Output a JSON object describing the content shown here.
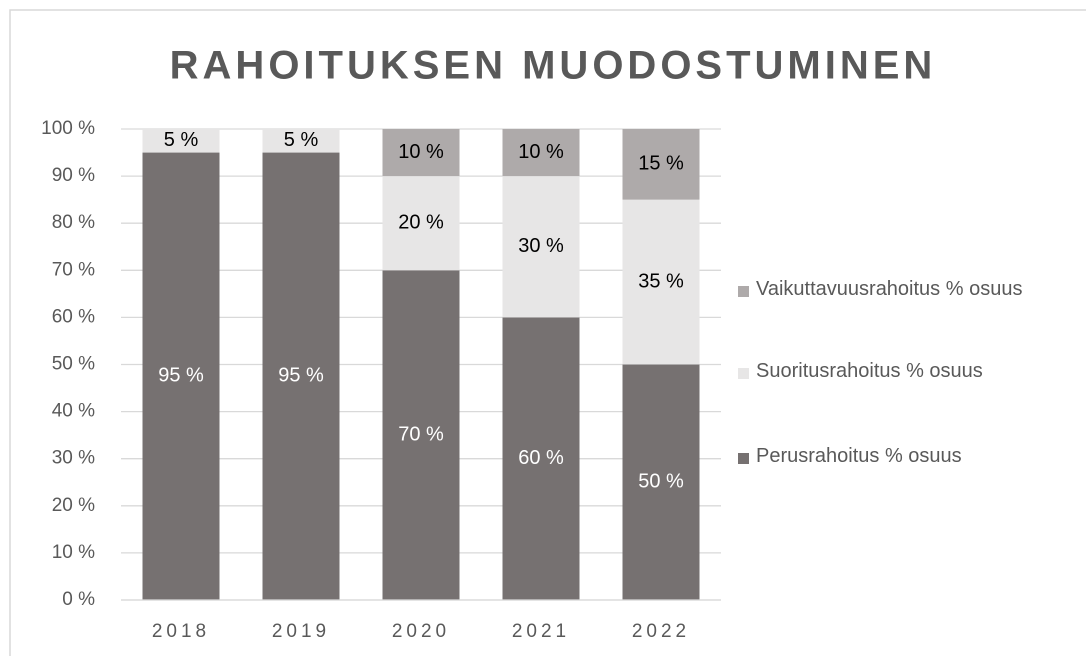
{
  "chart_data": {
    "type": "stacked_bar",
    "title": "RAHOITUKSEN MUODOSTUMINEN",
    "categories": [
      "2018",
      "2019",
      "2020",
      "2021",
      "2022"
    ],
    "series": [
      {
        "name": "Perusrahoitus % osuus",
        "color": "#767171",
        "values": [
          95,
          95,
          70,
          60,
          50
        ],
        "value_labels": [
          "95 %",
          "95 %",
          "70 %",
          "60 %",
          "50 %"
        ]
      },
      {
        "name": "Suoritusrahoitus % osuus",
        "color": "#e7e6e6",
        "values": [
          5,
          5,
          20,
          30,
          35
        ],
        "value_labels": [
          "5 %",
          "5 %",
          "20 %",
          "30 %",
          "35 %"
        ]
      },
      {
        "name": "Vaikuttavuusrahoitus % osuus",
        "color": "#aeaaaa",
        "values": [
          0,
          0,
          10,
          10,
          15
        ],
        "value_labels": [
          null,
          null,
          "10 %",
          "10 %",
          "15 %"
        ]
      }
    ],
    "ylim": [
      0,
      100
    ],
    "yticks": [
      {
        "value": 0,
        "label": "0 %"
      },
      {
        "value": 10,
        "label": "10 %"
      },
      {
        "value": 20,
        "label": "20 %"
      },
      {
        "value": 30,
        "label": "30 %"
      },
      {
        "value": 40,
        "label": "40 %"
      },
      {
        "value": 50,
        "label": "50 %"
      },
      {
        "value": 60,
        "label": "60 %"
      },
      {
        "value": 70,
        "label": "70 %"
      },
      {
        "value": 80,
        "label": "80 %"
      },
      {
        "value": 90,
        "label": "90 %"
      },
      {
        "value": 100,
        "label": "100 %"
      }
    ],
    "grid": true,
    "legend": "right"
  }
}
